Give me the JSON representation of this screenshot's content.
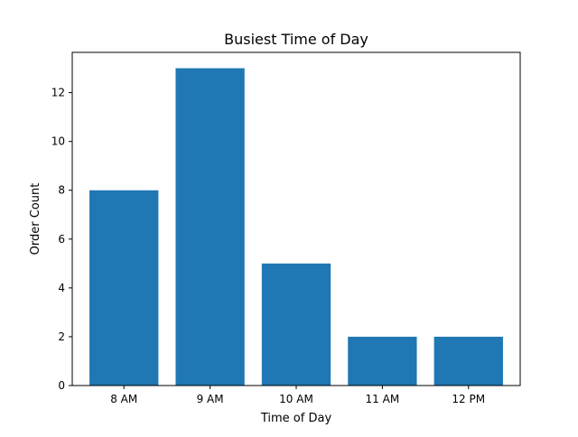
{
  "chart_data": {
    "type": "bar",
    "title": "Busiest Time of Day",
    "xlabel": "Time of Day",
    "ylabel": "Order Count",
    "categories": [
      "8 AM",
      "9 AM",
      "10 AM",
      "11 AM",
      "12 PM"
    ],
    "values": [
      8,
      13,
      5,
      2,
      2
    ],
    "ylim": [
      0,
      13.65
    ],
    "yticks": [
      0,
      2,
      4,
      6,
      8,
      10,
      12
    ],
    "grid": false,
    "bar_color": "#1f77b4"
  }
}
